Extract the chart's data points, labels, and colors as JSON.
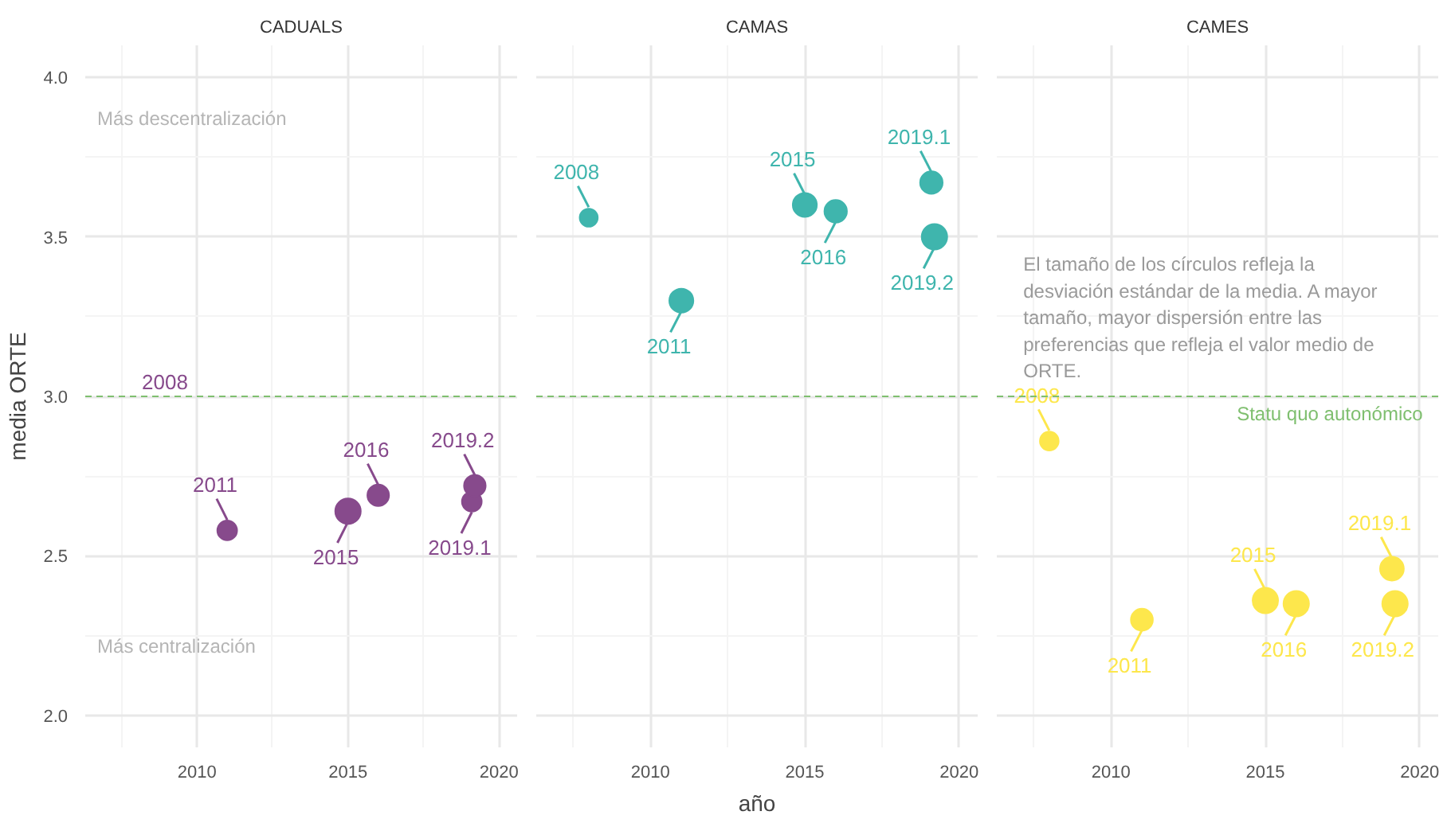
{
  "chart_data": [
    {
      "type": "bubble",
      "title": "CADUALS",
      "ylabel": "media ORTE",
      "x": [
        2011,
        2015,
        2016,
        2019.1,
        2019.2
      ],
      "series": [
        {
          "color": "#874a8c",
          "values": [
            2.58,
            2.64,
            2.69,
            2.67,
            2.72
          ],
          "sizes": [
            0.6,
            1,
            0.72,
            0.6,
            0.72
          ]
        }
      ],
      "xlim": [
        2006.3,
        2020.6
      ],
      "xticks": [
        2010,
        2015,
        2020
      ],
      "ylim": [
        1.9,
        4.1
      ],
      "yticks": [
        {
          "value": 2,
          "label": "2.0"
        },
        {
          "value": 2.5,
          "label": "2.5"
        },
        {
          "value": 3,
          "label": "3.0"
        },
        {
          "value": 3.5,
          "label": "3.5"
        },
        {
          "value": 4,
          "label": "4.0"
        }
      ],
      "ref_lines": [
        {
          "axis": "y",
          "value": 3,
          "color": "#7fbf6f",
          "line_style": "dashed"
        }
      ],
      "annotations": [
        {
          "text": "2011",
          "x": 2011,
          "y": 2.58
        },
        {
          "text": "2015",
          "x": 2015,
          "y": 2.64
        },
        {
          "text": "2016",
          "x": 2016,
          "y": 2.69
        },
        {
          "text": "2019.1",
          "x": 2019.1,
          "y": 2.67
        },
        {
          "text": "2019.2",
          "x": 2019.2,
          "y": 2.72
        },
        "2008",
        "Más descentralización",
        "Más centralización"
      ],
      "grid": true
    },
    {
      "type": "bubble",
      "title": "CAMAS",
      "xlabel": "año",
      "x": [
        2008,
        2011,
        2015,
        2016,
        2019.1,
        2019.2
      ],
      "series": [
        {
          "color": "#3fb5ad",
          "values": [
            3.56,
            3.3,
            3.6,
            3.58,
            3.67,
            3.5
          ],
          "sizes": [
            0.5,
            0.89,
            0.89,
            0.78,
            0.78,
            1
          ]
        }
      ],
      "xlim": [
        2006.3,
        2020.6
      ],
      "xticks": [
        2010,
        2015,
        2020
      ],
      "ylim": [
        1.9,
        4.1
      ],
      "yticks": [
        2,
        2.5,
        3,
        3.5,
        4
      ],
      "ref_lines": [
        {
          "axis": "y",
          "value": 3,
          "color": "#7fbf6f",
          "line_style": "dashed"
        }
      ],
      "annotations": [
        {
          "text": "2008",
          "x": 2008,
          "y": 3.56
        },
        {
          "text": "2011",
          "x": 2011,
          "y": 3.3
        },
        {
          "text": "2015",
          "x": 2015,
          "y": 3.6
        },
        {
          "text": "2016",
          "x": 2016,
          "y": 3.58
        },
        {
          "text": "2019.1",
          "x": 2019.1,
          "y": 3.67
        },
        {
          "text": "2019.2",
          "x": 2019.2,
          "y": 3.5
        }
      ],
      "tick_labels": "x",
      "grid": true
    },
    {
      "type": "bubble",
      "title": "CAMES",
      "x": [
        2008,
        2011,
        2015,
        2016,
        2019.1,
        2019.2
      ],
      "series": [
        {
          "color": "#fde74c",
          "values": [
            2.86,
            2.3,
            2.36,
            2.35,
            2.46,
            2.35
          ],
          "sizes": [
            0.54,
            0.74,
            1,
            1,
            0.87,
            1
          ]
        }
      ],
      "xlim": [
        2006.3,
        2020.6
      ],
      "xticks": [
        2010,
        2015,
        2020
      ],
      "ylim": [
        1.9,
        4.1
      ],
      "yticks": [
        2,
        2.5,
        3,
        3.5,
        4
      ],
      "ref_lines": [
        {
          "axis": "y",
          "value": 3,
          "color": "#7fbf6f",
          "line_style": "dashed",
          "label": "Statu quo autonómico"
        }
      ],
      "annotations": [
        {
          "text": "2008",
          "x": 2008,
          "y": 2.86
        },
        {
          "text": "2011",
          "x": 2011,
          "y": 2.3
        },
        {
          "text": "2015",
          "x": 2015,
          "y": 2.36
        },
        {
          "text": "2016",
          "x": 2016,
          "y": 2.35
        },
        {
          "text": "2019.1",
          "x": 2019.1,
          "y": 2.46
        },
        {
          "text": "2019.2",
          "x": 2019.2,
          "y": 2.35
        },
        "El tamaño de los círculos refleja la desviación estándar de la media. A mayor tamaño, mayor dispersión entre las preferencias que refleja el valor medio de ORTE."
      ],
      "tick_labels": "x",
      "grid": true
    }
  ]
}
